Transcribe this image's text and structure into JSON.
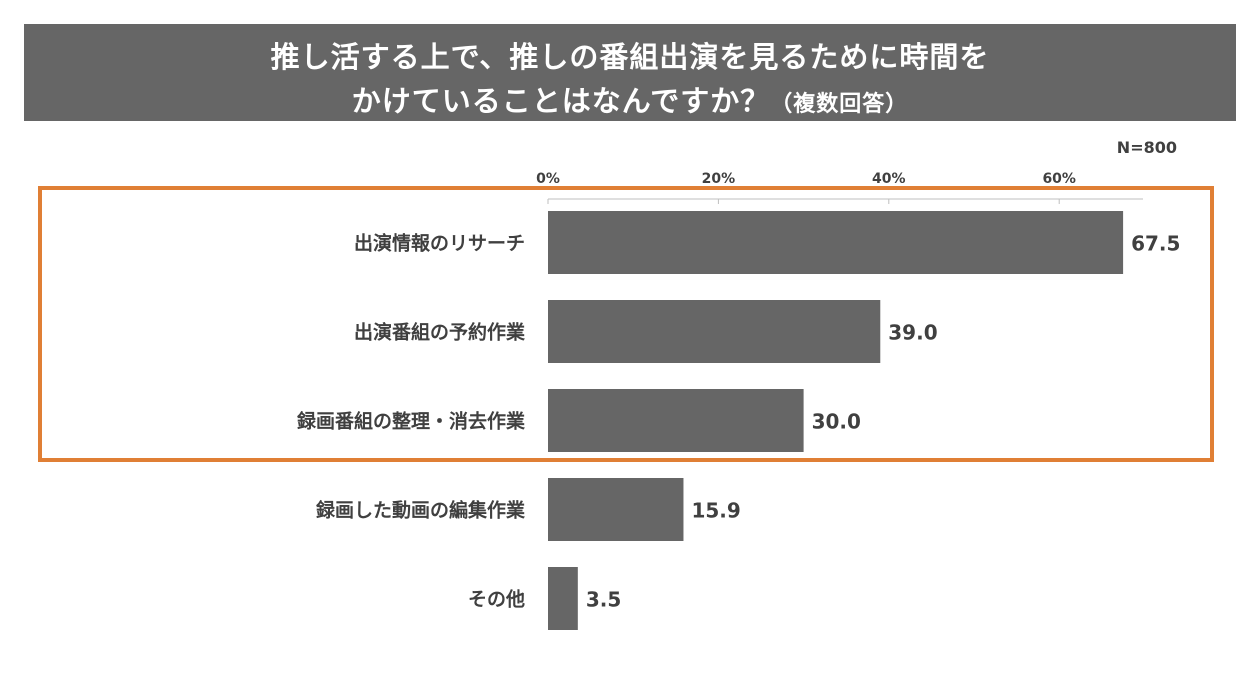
{
  "title": {
    "line1": "推し活する上で、推しの番組出演を見るために時間を",
    "line2": "かけていることはなんですか？",
    "suffix": "（複数回答）"
  },
  "sample_size": "N=800",
  "colors": {
    "bar": "#666666",
    "highlight": "#E07F35",
    "title_bg": "#666666",
    "text": "#404040"
  },
  "chart_data": {
    "type": "bar",
    "orientation": "horizontal",
    "title": "推し活する上で、推しの番組出演を見るために時間をかけていることはなんですか？（複数回答）",
    "categories": [
      "出演情報のリサーチ",
      "出演番組の予約作業",
      "録画番組の整理・消去作業",
      "録画した動画の編集作業",
      "その他"
    ],
    "values": [
      67.5,
      39.0,
      30.0,
      15.9,
      3.5
    ],
    "value_labels": [
      "67.5",
      "39.0",
      "30.0",
      "15.9",
      "3.5"
    ],
    "xticks": [
      "0%",
      "20%",
      "40%",
      "60%"
    ],
    "tick_values": [
      0,
      20,
      40,
      60
    ],
    "xlim": [
      0,
      70
    ],
    "xlabel": "",
    "ylabel": "",
    "axis_position": "top",
    "highlighted_categories": [
      "出演情報のリサーチ",
      "出演番組の予約作業",
      "録画番組の整理・消去作業"
    ]
  }
}
